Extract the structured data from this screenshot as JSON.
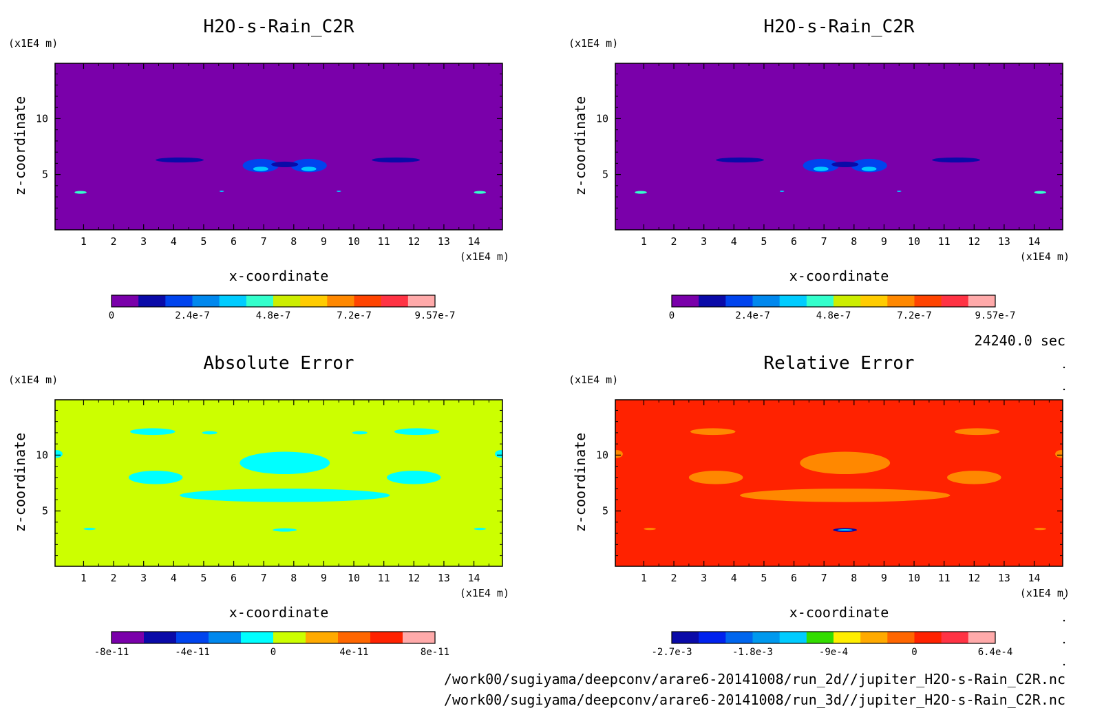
{
  "chart_data": [
    {
      "type": "heatmap",
      "title": "H2O-s-Rain_C2R",
      "xlabel": "x-coordinate",
      "ylabel": "z-coordinate",
      "x_unit": "(x1E4 m)",
      "z_unit": "(x1E4 m)",
      "xlim": [
        0.05,
        14.95
      ],
      "ylim": [
        0.05,
        14.95
      ],
      "x_ticks": [
        "1",
        "2",
        "3",
        "4",
        "5",
        "6",
        "7",
        "8",
        "9",
        "10",
        "11",
        "12",
        "13",
        "14"
      ],
      "z_ticks": [
        "5",
        "10"
      ],
      "background": "#7a00aa",
      "colorbar": {
        "colors": [
          "#7a00aa",
          "#0a0aa8",
          "#0044ee",
          "#0088ee",
          "#00ccff",
          "#33ffcc",
          "#ccee00",
          "#ffcc00",
          "#ff8800",
          "#ff4400",
          "#ff3344",
          "#ffaaaa"
        ],
        "labels": [
          "0",
          "2.4e-7",
          "4.8e-7",
          "7.2e-7",
          "9.57e-7"
        ]
      },
      "features": [
        {
          "x": 4.2,
          "z": 6.3,
          "w": 1.6,
          "h": 0.45,
          "color": "#0a0aa8"
        },
        {
          "x": 11.4,
          "z": 6.3,
          "w": 1.6,
          "h": 0.45,
          "color": "#0a0aa8"
        },
        {
          "x": 6.9,
          "z": 5.8,
          "w": 1.2,
          "h": 1.2,
          "color": "#0044ee"
        },
        {
          "x": 8.5,
          "z": 5.8,
          "w": 1.2,
          "h": 1.2,
          "color": "#0044ee"
        },
        {
          "x": 7.7,
          "z": 5.9,
          "w": 0.9,
          "h": 0.5,
          "color": "#0a0aa8"
        },
        {
          "x": 6.9,
          "z": 5.5,
          "w": 0.5,
          "h": 0.4,
          "color": "#00ccff"
        },
        {
          "x": 8.5,
          "z": 5.5,
          "w": 0.5,
          "h": 0.4,
          "color": "#00ccff"
        },
        {
          "x": 0.9,
          "z": 3.4,
          "w": 0.4,
          "h": 0.25,
          "color": "#33ffcc"
        },
        {
          "x": 14.2,
          "z": 3.4,
          "w": 0.4,
          "h": 0.25,
          "color": "#33ffcc"
        },
        {
          "x": 5.6,
          "z": 3.5,
          "w": 0.15,
          "h": 0.12,
          "color": "#00ccff"
        },
        {
          "x": 9.5,
          "z": 3.5,
          "w": 0.15,
          "h": 0.12,
          "color": "#00ccff"
        }
      ]
    },
    {
      "type": "heatmap",
      "title": "H2O-s-Rain_C2R",
      "xlabel": "x-coordinate",
      "ylabel": "z-coordinate",
      "x_unit": "(x1E4 m)",
      "z_unit": "(x1E4 m)",
      "xlim": [
        0.05,
        14.95
      ],
      "ylim": [
        0.05,
        14.95
      ],
      "x_ticks": [
        "1",
        "2",
        "3",
        "4",
        "5",
        "6",
        "7",
        "8",
        "9",
        "10",
        "11",
        "12",
        "13",
        "14"
      ],
      "z_ticks": [
        "5",
        "10"
      ],
      "background": "#7a00aa",
      "colorbar": {
        "colors": [
          "#7a00aa",
          "#0a0aa8",
          "#0044ee",
          "#0088ee",
          "#00ccff",
          "#33ffcc",
          "#ccee00",
          "#ffcc00",
          "#ff8800",
          "#ff4400",
          "#ff3344",
          "#ffaaaa"
        ],
        "labels": [
          "0",
          "2.4e-7",
          "4.8e-7",
          "7.2e-7",
          "9.57e-7"
        ]
      },
      "features": [
        {
          "x": 4.2,
          "z": 6.3,
          "w": 1.6,
          "h": 0.45,
          "color": "#0a0aa8"
        },
        {
          "x": 11.4,
          "z": 6.3,
          "w": 1.6,
          "h": 0.45,
          "color": "#0a0aa8"
        },
        {
          "x": 6.9,
          "z": 5.8,
          "w": 1.2,
          "h": 1.2,
          "color": "#0044ee"
        },
        {
          "x": 8.5,
          "z": 5.8,
          "w": 1.2,
          "h": 1.2,
          "color": "#0044ee"
        },
        {
          "x": 7.7,
          "z": 5.9,
          "w": 0.9,
          "h": 0.5,
          "color": "#0a0aa8"
        },
        {
          "x": 6.9,
          "z": 5.5,
          "w": 0.5,
          "h": 0.4,
          "color": "#00ccff"
        },
        {
          "x": 8.5,
          "z": 5.5,
          "w": 0.5,
          "h": 0.4,
          "color": "#00ccff"
        },
        {
          "x": 0.9,
          "z": 3.4,
          "w": 0.4,
          "h": 0.25,
          "color": "#33ffcc"
        },
        {
          "x": 14.2,
          "z": 3.4,
          "w": 0.4,
          "h": 0.25,
          "color": "#33ffcc"
        },
        {
          "x": 5.6,
          "z": 3.5,
          "w": 0.15,
          "h": 0.12,
          "color": "#00ccff"
        },
        {
          "x": 9.5,
          "z": 3.5,
          "w": 0.15,
          "h": 0.12,
          "color": "#00ccff"
        }
      ]
    },
    {
      "type": "heatmap",
      "title": "Absolute Error",
      "xlabel": "x-coordinate",
      "ylabel": "z-coordinate",
      "x_unit": "(x1E4 m)",
      "z_unit": "(x1E4 m)",
      "xlim": [
        0.05,
        14.95
      ],
      "ylim": [
        0.05,
        14.95
      ],
      "x_ticks": [
        "1",
        "2",
        "3",
        "4",
        "5",
        "6",
        "7",
        "8",
        "9",
        "10",
        "11",
        "12",
        "13",
        "14"
      ],
      "z_ticks": [
        "5",
        "10"
      ],
      "background": "#ccff00",
      "colorbar": {
        "colors": [
          "#7a00aa",
          "#0a0aa8",
          "#0044ee",
          "#0088ee",
          "#00ffff",
          "#ccff00",
          "#ffaa00",
          "#ff6600",
          "#ff2200",
          "#ffaaaa"
        ],
        "labels": [
          "-8e-11",
          "-4e-11",
          "0",
          "4e-11",
          "8e-11"
        ]
      },
      "features": [
        {
          "x": 3.3,
          "z": 12.1,
          "w": 1.5,
          "h": 0.6,
          "color": "#00ffff"
        },
        {
          "x": 12.1,
          "z": 12.1,
          "w": 1.5,
          "h": 0.6,
          "color": "#00ffff"
        },
        {
          "x": 5.2,
          "z": 12.0,
          "w": 0.5,
          "h": 0.3,
          "color": "#00ffff"
        },
        {
          "x": 10.2,
          "z": 12.0,
          "w": 0.5,
          "h": 0.3,
          "color": "#00ffff"
        },
        {
          "x": 7.7,
          "z": 9.3,
          "w": 3.0,
          "h": 2.0,
          "color": "#00ffff"
        },
        {
          "x": 3.4,
          "z": 8.0,
          "w": 1.8,
          "h": 1.2,
          "color": "#00ffff"
        },
        {
          "x": 12.0,
          "z": 8.0,
          "w": 1.8,
          "h": 1.2,
          "color": "#00ffff"
        },
        {
          "x": 7.7,
          "z": 6.4,
          "w": 7.0,
          "h": 1.2,
          "color": "#00ffff"
        },
        {
          "x": 0.1,
          "z": 10.1,
          "w": 0.4,
          "h": 0.7,
          "color": "#00ffff"
        },
        {
          "x": 14.9,
          "z": 10.1,
          "w": 0.4,
          "h": 0.7,
          "color": "#00ffff"
        },
        {
          "x": 1.2,
          "z": 3.4,
          "w": 0.4,
          "h": 0.2,
          "color": "#00ffff"
        },
        {
          "x": 14.2,
          "z": 3.4,
          "w": 0.4,
          "h": 0.2,
          "color": "#00ffff"
        },
        {
          "x": 7.7,
          "z": 3.3,
          "w": 0.8,
          "h": 0.3,
          "color": "#00ffff"
        }
      ]
    },
    {
      "type": "heatmap",
      "title": "Relative Error",
      "xlabel": "x-coordinate",
      "ylabel": "z-coordinate",
      "x_unit": "(x1E4 m)",
      "z_unit": "(x1E4 m)",
      "xlim": [
        0.05,
        14.95
      ],
      "ylim": [
        0.05,
        14.95
      ],
      "x_ticks": [
        "1",
        "2",
        "3",
        "4",
        "5",
        "6",
        "7",
        "8",
        "9",
        "10",
        "11",
        "12",
        "13",
        "14"
      ],
      "z_ticks": [
        "5",
        "10"
      ],
      "background": "#ff2200",
      "colorbar": {
        "colors": [
          "#0a0aa8",
          "#0022ee",
          "#0066ee",
          "#0099ee",
          "#00ccff",
          "#33dd00",
          "#ffee00",
          "#ffaa00",
          "#ff6600",
          "#ff2200",
          "#ff3344",
          "#ffaaaa"
        ],
        "labels": [
          "-2.7e-3",
          "-1.8e-3",
          "-9e-4",
          "0",
          "6.4e-4"
        ]
      },
      "features": [
        {
          "x": 3.3,
          "z": 12.1,
          "w": 1.5,
          "h": 0.6,
          "color": "#ff8800"
        },
        {
          "x": 12.1,
          "z": 12.1,
          "w": 1.5,
          "h": 0.6,
          "color": "#ff8800"
        },
        {
          "x": 7.7,
          "z": 9.3,
          "w": 3.0,
          "h": 2.0,
          "color": "#ff8800"
        },
        {
          "x": 3.4,
          "z": 8.0,
          "w": 1.8,
          "h": 1.2,
          "color": "#ff8800"
        },
        {
          "x": 12.0,
          "z": 8.0,
          "w": 1.8,
          "h": 1.2,
          "color": "#ff8800"
        },
        {
          "x": 7.7,
          "z": 6.4,
          "w": 7.0,
          "h": 1.2,
          "color": "#ff8800"
        },
        {
          "x": 0.1,
          "z": 10.1,
          "w": 0.4,
          "h": 0.7,
          "color": "#ff8800"
        },
        {
          "x": 14.9,
          "z": 10.1,
          "w": 0.4,
          "h": 0.7,
          "color": "#ff8800"
        },
        {
          "x": 1.2,
          "z": 3.4,
          "w": 0.4,
          "h": 0.2,
          "color": "#ff8800"
        },
        {
          "x": 14.2,
          "z": 3.4,
          "w": 0.4,
          "h": 0.2,
          "color": "#ff8800"
        },
        {
          "x": 7.7,
          "z": 3.3,
          "w": 0.8,
          "h": 0.35,
          "color": "#0a0aa8"
        },
        {
          "x": 7.7,
          "z": 3.3,
          "w": 0.5,
          "h": 0.15,
          "color": "#00ccff"
        }
      ]
    }
  ],
  "time_label": "24240.0 sec",
  "footer": {
    "path_2d": "/work00/sugiyama/deepconv/arare6-20141008/run_2d//jupiter_H2O-s-Rain_C2R.nc",
    "path_3d": "/work00/sugiyama/deepconv/arare6-20141008/run_3d//jupiter_H2O-s-Rain_C2R.nc"
  }
}
